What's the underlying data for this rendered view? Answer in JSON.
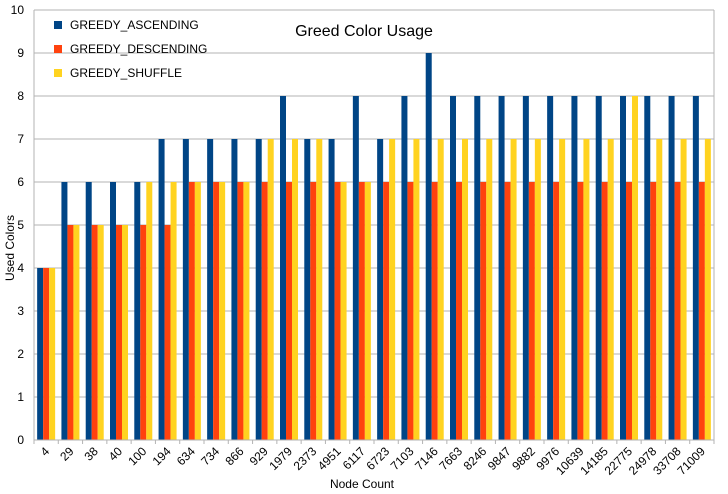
{
  "chart_data": {
    "type": "bar",
    "title": "Greed Color Usage",
    "xlabel": "Node Count",
    "ylabel": "Used Colors",
    "ylim": [
      0,
      10
    ],
    "yticks": [
      0,
      1,
      2,
      3,
      4,
      5,
      6,
      7,
      8,
      9,
      10
    ],
    "grid": true,
    "legend_position": "top-left",
    "categories": [
      "4",
      "29",
      "38",
      "40",
      "100",
      "194",
      "634",
      "734",
      "866",
      "929",
      "1979",
      "2373",
      "4951",
      "6117",
      "6723",
      "7103",
      "7146",
      "7663",
      "8246",
      "9847",
      "9882",
      "9976",
      "10639",
      "14185",
      "22775",
      "24978",
      "33708",
      "71009"
    ],
    "series": [
      {
        "name": "GREEDY_ASCENDING",
        "color": "#004586",
        "values": [
          4,
          6,
          6,
          6,
          6,
          7,
          7,
          7,
          7,
          7,
          8,
          7,
          7,
          8,
          7,
          8,
          9,
          8,
          8,
          8,
          8,
          8,
          8,
          8,
          8,
          8,
          8,
          8
        ]
      },
      {
        "name": "GREEDY_DESCENDING",
        "color": "#ff420e",
        "values": [
          4,
          5,
          5,
          5,
          5,
          5,
          6,
          6,
          6,
          6,
          6,
          6,
          6,
          6,
          6,
          6,
          6,
          6,
          6,
          6,
          6,
          6,
          6,
          6,
          6,
          6,
          6,
          6
        ]
      },
      {
        "name": "GREEDY_SHUFFLE",
        "color": "#ffd320",
        "values": [
          4,
          5,
          5,
          5,
          6,
          6,
          6,
          6,
          6,
          7,
          7,
          7,
          6,
          6,
          7,
          7,
          7,
          7,
          7,
          7,
          7,
          7,
          7,
          7,
          8,
          7,
          7,
          7
        ]
      }
    ]
  }
}
